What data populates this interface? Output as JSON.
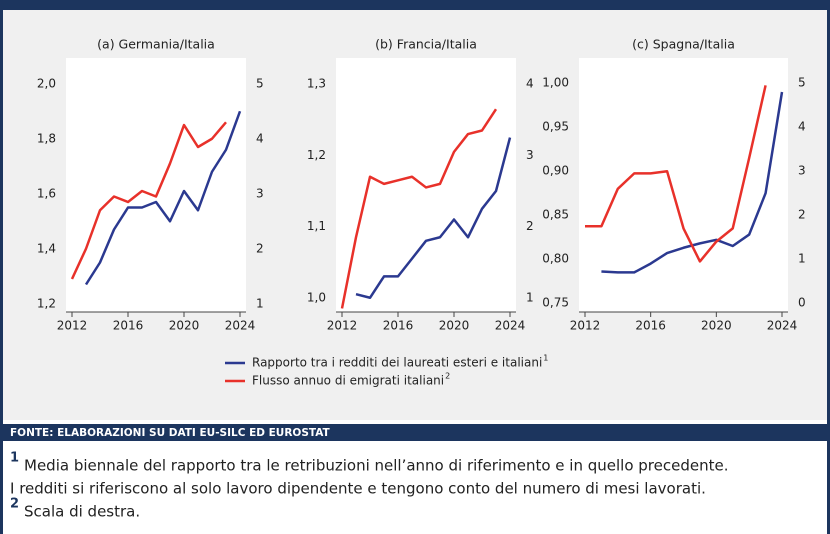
{
  "chart_data": [
    {
      "type": "line",
      "title": "(a) Germania/Italia",
      "x": [
        2012,
        2013,
        2014,
        2015,
        2016,
        2017,
        2018,
        2019,
        2020,
        2021,
        2022,
        2023,
        2024
      ],
      "xlim": [
        2012,
        2024
      ],
      "xticks": [
        2012,
        2016,
        2020,
        2024
      ],
      "ylim": [
        1.17,
        2.05
      ],
      "yticks": [
        {
          "value": 1.2,
          "label": "1,2"
        },
        {
          "value": 1.4,
          "label": "1,4"
        },
        {
          "value": 1.6,
          "label": "1,6"
        },
        {
          "value": 1.8,
          "label": "1,8"
        },
        {
          "value": 2.0,
          "label": "2,0"
        }
      ],
      "y2lim": [
        0.85,
        5.25
      ],
      "y2ticks": [
        1,
        2,
        3,
        4,
        5
      ],
      "series": [
        {
          "name": "Rapporto tra i redditi dei laureati esteri e italiani",
          "color": "#2b3990",
          "values": [
            null,
            1.27,
            1.35,
            1.47,
            1.55,
            1.55,
            1.57,
            1.5,
            1.61,
            1.54,
            1.68,
            1.76,
            1.9
          ]
        },
        {
          "name": "Flusso annuo di emigrati italiani",
          "color": "#e8312a",
          "axis": "y2",
          "values": [
            1.45,
            2.0,
            2.7,
            2.95,
            2.85,
            3.05,
            2.95,
            3.55,
            4.25,
            3.85,
            4.0,
            4.3,
            null
          ]
        }
      ]
    },
    {
      "type": "line",
      "title": "(b) Francia/Italia",
      "x": [
        2012,
        2013,
        2014,
        2015,
        2016,
        2017,
        2018,
        2019,
        2020,
        2021,
        2022,
        2023,
        2024
      ],
      "xlim": [
        2012,
        2024
      ],
      "xticks": [
        2012,
        2016,
        2020,
        2024
      ],
      "ylim": [
        0.98,
        1.32
      ],
      "yticks": [
        {
          "value": 1.0,
          "label": "1,0"
        },
        {
          "value": 1.1,
          "label": "1,1"
        },
        {
          "value": 1.2,
          "label": "1,2"
        },
        {
          "value": 1.3,
          "label": "1,3"
        }
      ],
      "y2lim": [
        0.8,
        4.2
      ],
      "y2ticks": [
        1,
        2,
        3,
        4
      ],
      "series": [
        {
          "color": "#2b3990",
          "values": [
            null,
            1.005,
            1.0,
            1.03,
            1.03,
            1.055,
            1.08,
            1.085,
            1.11,
            1.085,
            1.125,
            1.15,
            1.225
          ]
        },
        {
          "color": "#e8312a",
          "axis": "y2",
          "values": [
            0.85,
            1.85,
            2.7,
            2.6,
            2.65,
            2.7,
            2.55,
            2.6,
            3.05,
            3.3,
            3.35,
            3.65,
            null
          ]
        }
      ]
    },
    {
      "type": "line",
      "title": "(c) Spagna/Italia",
      "x": [
        2012,
        2013,
        2014,
        2015,
        2016,
        2017,
        2018,
        2019,
        2020,
        2021,
        2022,
        2023,
        2024
      ],
      "xlim": [
        2012,
        2024
      ],
      "xticks": [
        2012,
        2016,
        2020,
        2024
      ],
      "ylim": [
        0.74,
        1.015
      ],
      "yticks": [
        {
          "value": 0.75,
          "label": "0,75"
        },
        {
          "value": 0.8,
          "label": "0,80"
        },
        {
          "value": 0.85,
          "label": "0,85"
        },
        {
          "value": 0.9,
          "label": "0,90"
        },
        {
          "value": 0.95,
          "label": "0,95"
        },
        {
          "value": 1.0,
          "label": "1,00"
        }
      ],
      "y2lim": [
        -0.2,
        5.3
      ],
      "y2ticks": [
        0,
        1,
        2,
        3,
        4,
        5
      ],
      "series": [
        {
          "color": "#2b3990",
          "values": [
            null,
            0.786,
            0.785,
            0.785,
            0.795,
            0.807,
            0.813,
            0.818,
            0.822,
            0.815,
            0.828,
            0.875,
            0.99
          ]
        },
        {
          "color": "#e8312a",
          "axis": "y2",
          "values": [
            1.75,
            1.75,
            2.6,
            2.95,
            2.95,
            3.0,
            1.7,
            0.95,
            1.4,
            1.7,
            3.3,
            4.95,
            null
          ]
        }
      ]
    }
  ],
  "legend_notes": [
    "1",
    "2"
  ],
  "source": "FONTE: ELABORAZIONI SU DATI EU-SILC ED EUROSTAT",
  "notes": [
    {
      "marker": "1",
      "lines": [
        "Media biennale del rapporto tra le retribuzioni nell’anno di riferimento e in quello precedente.",
        "I redditi si riferiscono al solo lavoro dipendente e tengono conto del numero di mesi lavorati."
      ]
    },
    {
      "marker": "2",
      "lines": [
        "Scala di destra."
      ]
    }
  ]
}
